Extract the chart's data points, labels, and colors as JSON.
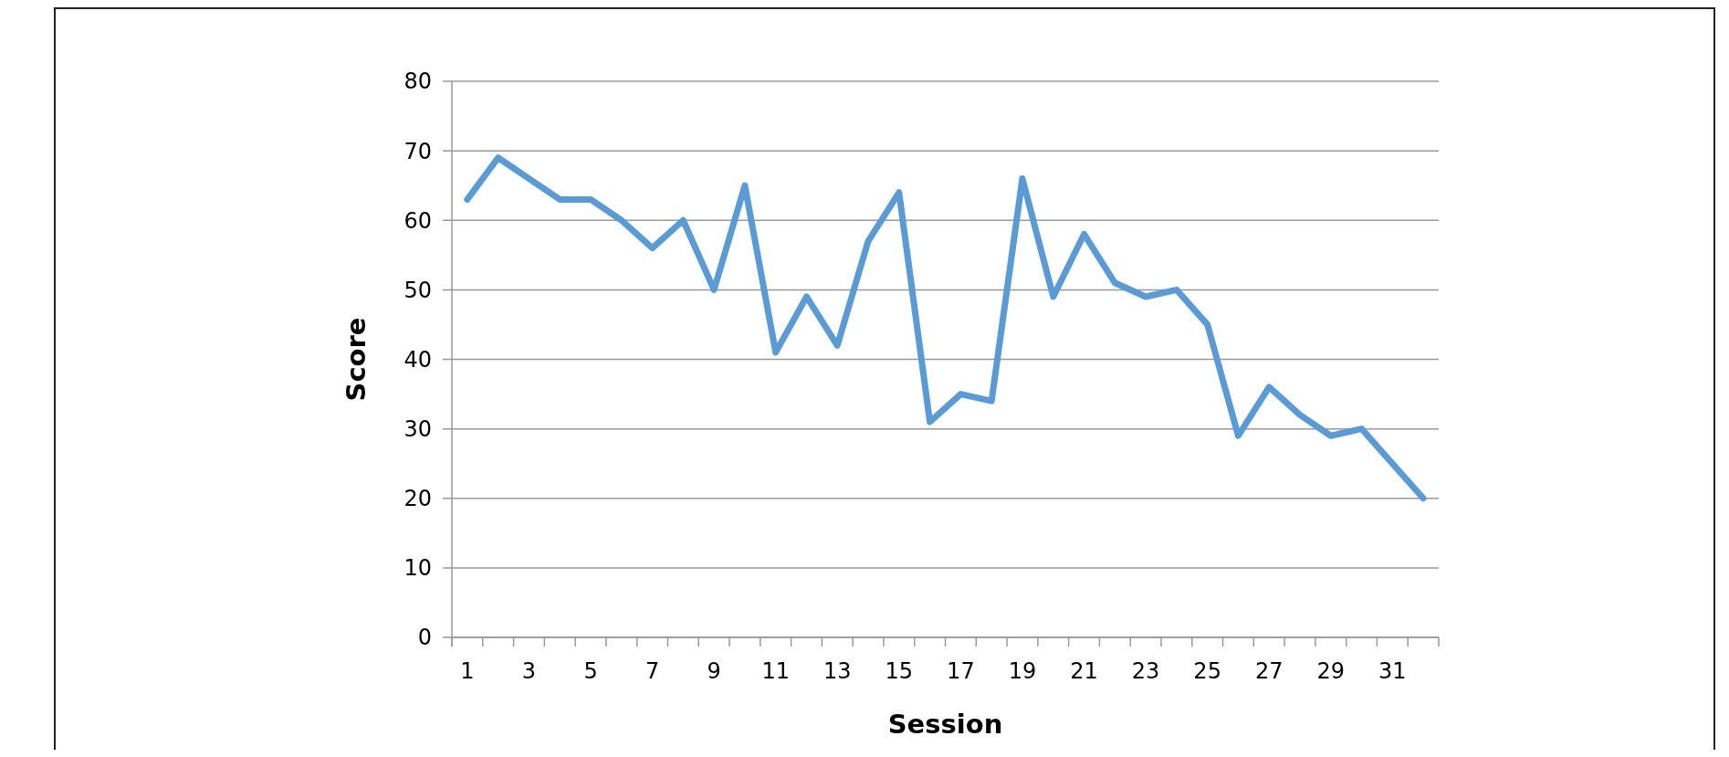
{
  "chart_data": {
    "type": "line",
    "xlabel": "Session",
    "ylabel": "Score",
    "x": [
      1,
      2,
      3,
      4,
      5,
      6,
      7,
      8,
      9,
      10,
      11,
      12,
      13,
      14,
      15,
      16,
      17,
      18,
      19,
      20,
      21,
      22,
      23,
      24,
      25,
      26,
      27,
      28,
      29,
      30,
      31,
      32
    ],
    "series": [
      {
        "color": "#5b9bd5",
        "values": [
          63,
          69,
          66,
          63,
          63,
          60,
          56,
          60,
          50,
          65,
          41,
          49,
          42,
          57,
          64,
          31,
          35,
          34,
          66,
          49,
          58,
          51,
          49,
          50,
          45,
          29,
          36,
          32,
          29,
          30,
          25,
          20
        ]
      }
    ],
    "xlim": [
      0.5,
      32.5
    ],
    "xticks": [
      1,
      3,
      5,
      7,
      9,
      11,
      13,
      15,
      17,
      19,
      21,
      23,
      25,
      27,
      29,
      31,
      {
        "value": 0.5,
        "label": null
      },
      {
        "value": 1.5,
        "label": null
      },
      {
        "value": 2.5,
        "label": null
      },
      {
        "value": 3.5,
        "label": null
      },
      {
        "value": 4.5,
        "label": null
      },
      {
        "value": 5.5,
        "label": null
      },
      {
        "value": 6.5,
        "label": null
      },
      {
        "value": 7.5,
        "label": null
      },
      {
        "value": 8.5,
        "label": null
      },
      {
        "value": 9.5,
        "label": null
      },
      {
        "value": 10.5,
        "label": null
      },
      {
        "value": 11.5,
        "label": null
      },
      {
        "value": 12.5,
        "label": null
      },
      {
        "value": 13.5,
        "label": null
      },
      {
        "value": 14.5,
        "label": null
      },
      {
        "value": 15.5,
        "label": null
      },
      {
        "value": 16.5,
        "label": null
      },
      {
        "value": 17.5,
        "label": null
      },
      {
        "value": 18.5,
        "label": null
      },
      {
        "value": 19.5,
        "label": null
      },
      {
        "value": 20.5,
        "label": null
      },
      {
        "value": 21.5,
        "label": null
      },
      {
        "value": 22.5,
        "label": null
      },
      {
        "value": 23.5,
        "label": null
      },
      {
        "value": 24.5,
        "label": null
      },
      {
        "value": 25.5,
        "label": null
      },
      {
        "value": 26.5,
        "label": null
      },
      {
        "value": 27.5,
        "label": null
      },
      {
        "value": 28.5,
        "label": null
      },
      {
        "value": 29.5,
        "label": null
      },
      {
        "value": 30.5,
        "label": null
      },
      {
        "value": 31.5,
        "label": null
      },
      {
        "value": 32.5,
        "label": null
      }
    ],
    "ylim": [
      0,
      80
    ],
    "yticks": [
      0,
      10,
      20,
      30,
      40,
      50,
      60,
      70,
      80
    ],
    "grid": "y",
    "marker": "none",
    "line_style": "solid"
  }
}
